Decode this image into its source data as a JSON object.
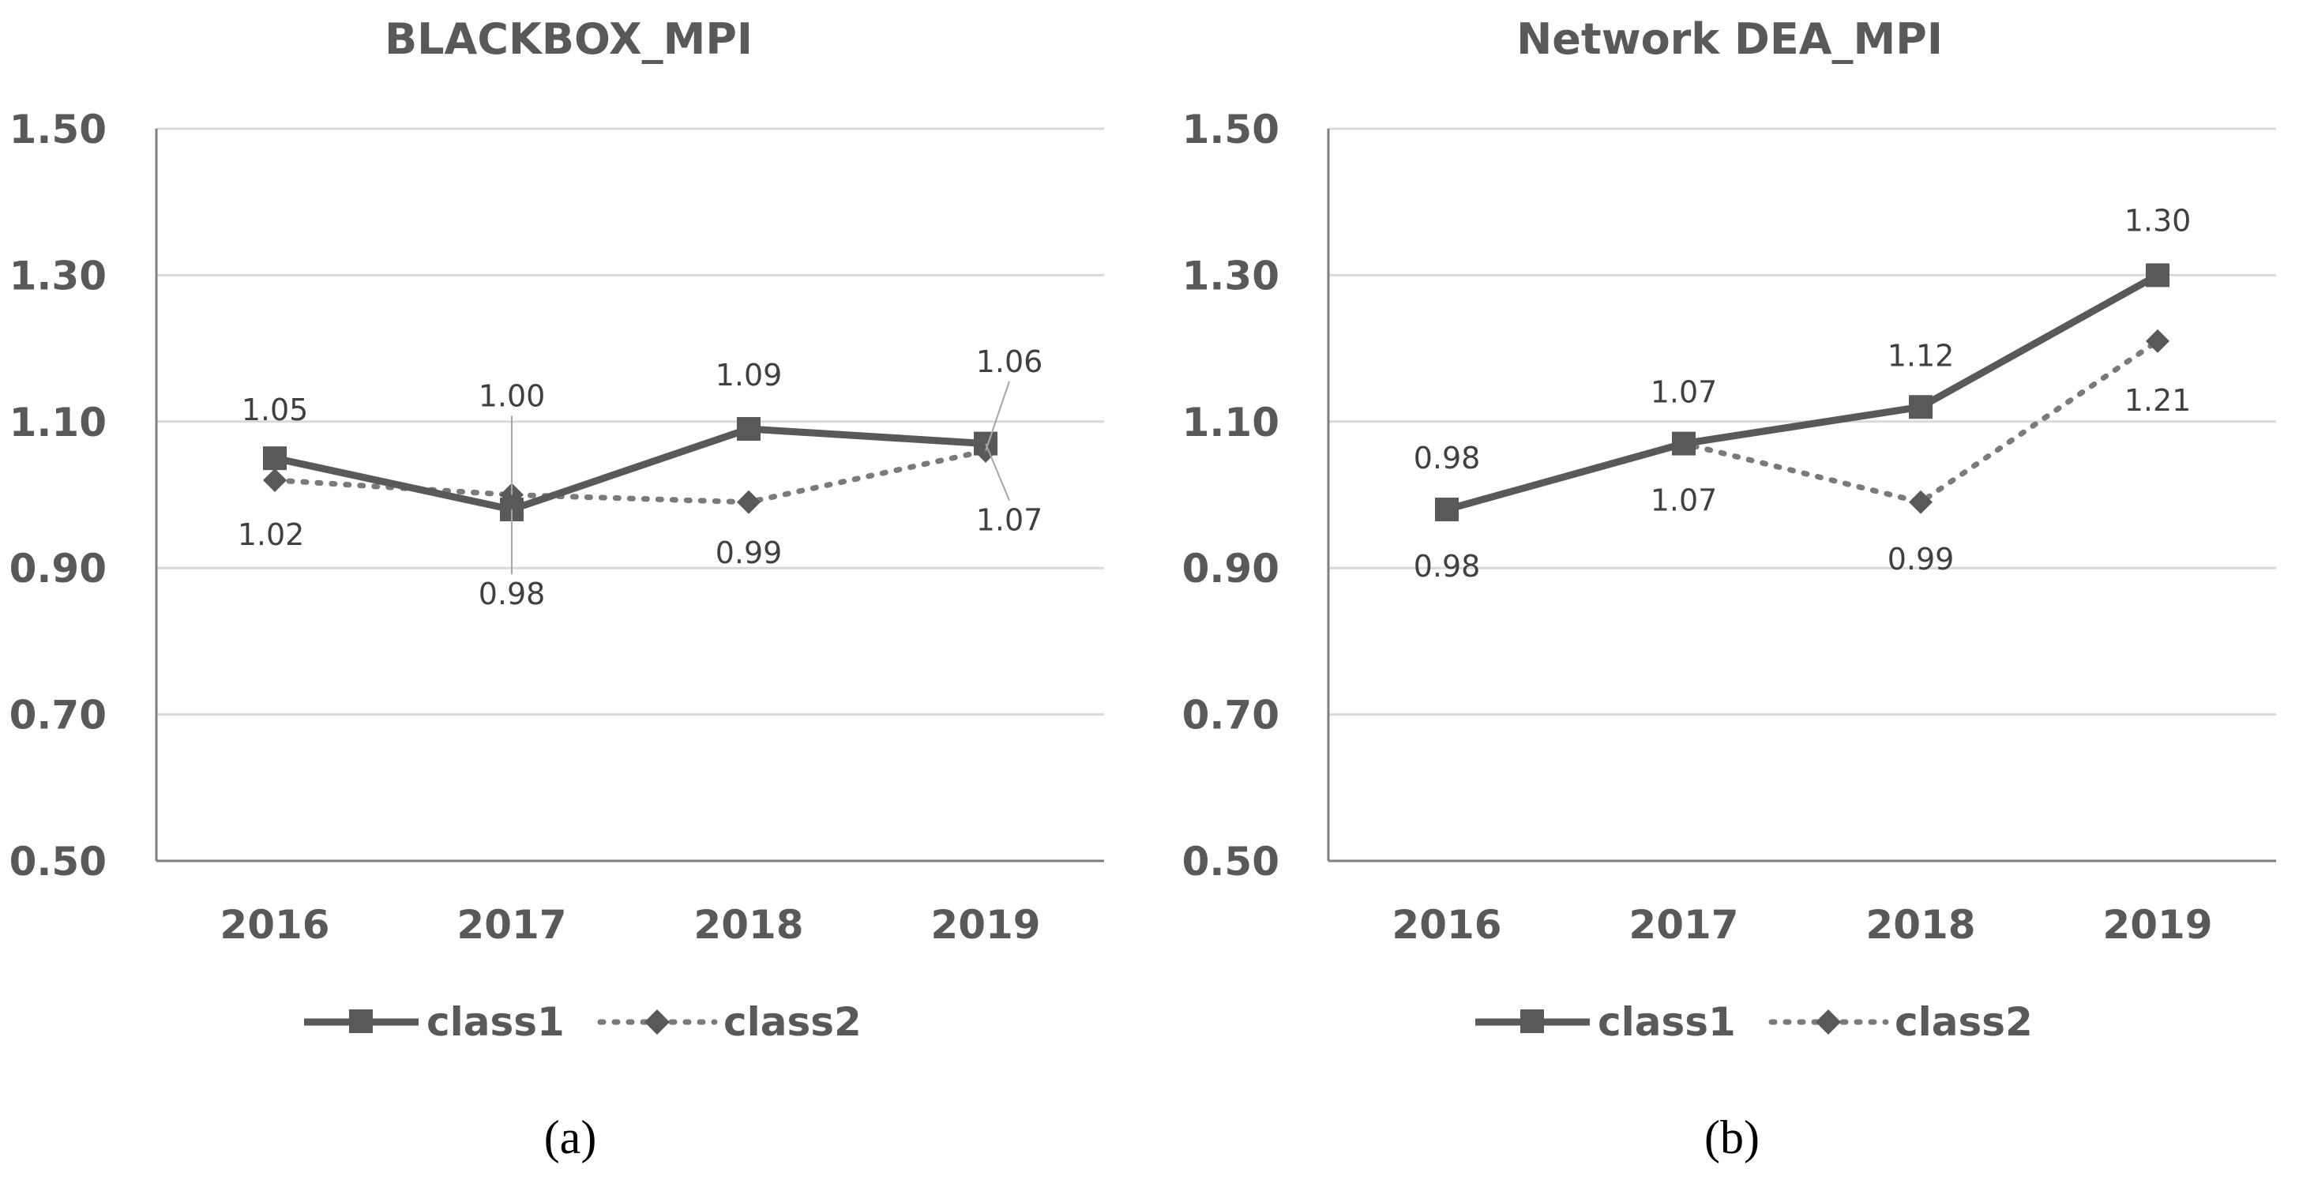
{
  "chart_data": [
    {
      "type": "line",
      "title": "BLACKBOX_MPI",
      "caption": "(a)",
      "categories": [
        "2016",
        "2017",
        "2018",
        "2019"
      ],
      "ylim": [
        0.5,
        1.5
      ],
      "yticks": [
        "0.50",
        "0.70",
        "0.90",
        "1.10",
        "1.30",
        "1.50"
      ],
      "grid": true,
      "legend_position": "bottom",
      "series": [
        {
          "name": "class1",
          "style": "solid",
          "marker": "square",
          "values": [
            1.05,
            0.98,
            1.09,
            1.07
          ],
          "labels": [
            "1.05",
            "0.98",
            "1.09",
            "1.07"
          ]
        },
        {
          "name": "class2",
          "style": "dotted",
          "marker": "diamond",
          "values": [
            1.02,
            1.0,
            0.99,
            1.06
          ],
          "labels": [
            "1.02",
            "1.00",
            "0.99",
            "1.06"
          ]
        }
      ]
    },
    {
      "type": "line",
      "title": "Network DEA_MPI",
      "caption": "(b)",
      "categories": [
        "2016",
        "2017",
        "2018",
        "2019"
      ],
      "ylim": [
        0.5,
        1.5
      ],
      "yticks": [
        "0.50",
        "0.70",
        "0.90",
        "1.10",
        "1.30",
        "1.50"
      ],
      "grid": true,
      "legend_position": "bottom",
      "series": [
        {
          "name": "class1",
          "style": "solid",
          "marker": "square",
          "values": [
            0.98,
            1.07,
            1.12,
            1.3
          ],
          "labels": [
            "0.98",
            "1.07",
            "1.12",
            "1.30"
          ]
        },
        {
          "name": "class2",
          "style": "dotted",
          "marker": "diamond",
          "values": [
            0.98,
            1.07,
            0.99,
            1.21
          ],
          "labels": [
            "0.98",
            "1.07",
            "0.99",
            "1.21"
          ]
        }
      ]
    }
  ],
  "colors": {
    "line": "#595959",
    "grid": "#d9d9d9",
    "axis": "#7f7f7f",
    "text": "#595959",
    "label": "#404040"
  }
}
